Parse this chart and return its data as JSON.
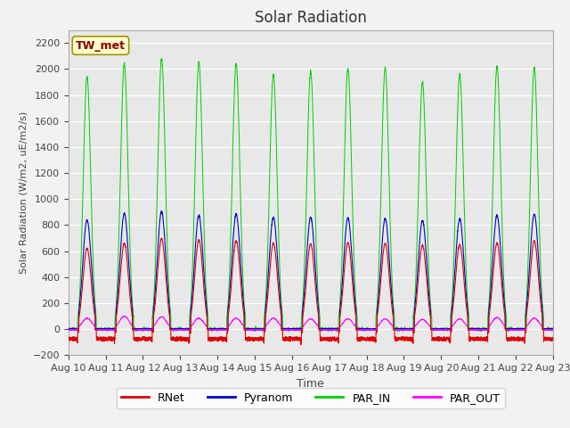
{
  "title": "Solar Radiation",
  "ylabel": "Solar Radiation (W/m2, uE/m2/s)",
  "xlabel": "Time",
  "ylim": [
    -200,
    2300
  ],
  "yticks": [
    -200,
    0,
    200,
    400,
    600,
    800,
    1000,
    1200,
    1400,
    1600,
    1800,
    2000,
    2200
  ],
  "axes_bg": "#e8e8e8",
  "fig_bg": "#f2f2f2",
  "grid_color": "#ffffff",
  "legend_items": [
    "RNet",
    "Pyranom",
    "PAR_IN",
    "PAR_OUT"
  ],
  "legend_colors": [
    "#dd0000",
    "#0000cc",
    "#00cc00",
    "#ff00ff"
  ],
  "annotation_text": "TW_met",
  "annotation_bg": "#ffffcc",
  "annotation_border": "#999900",
  "n_days": 13,
  "day_start": 10,
  "pts_per_day": 288
}
